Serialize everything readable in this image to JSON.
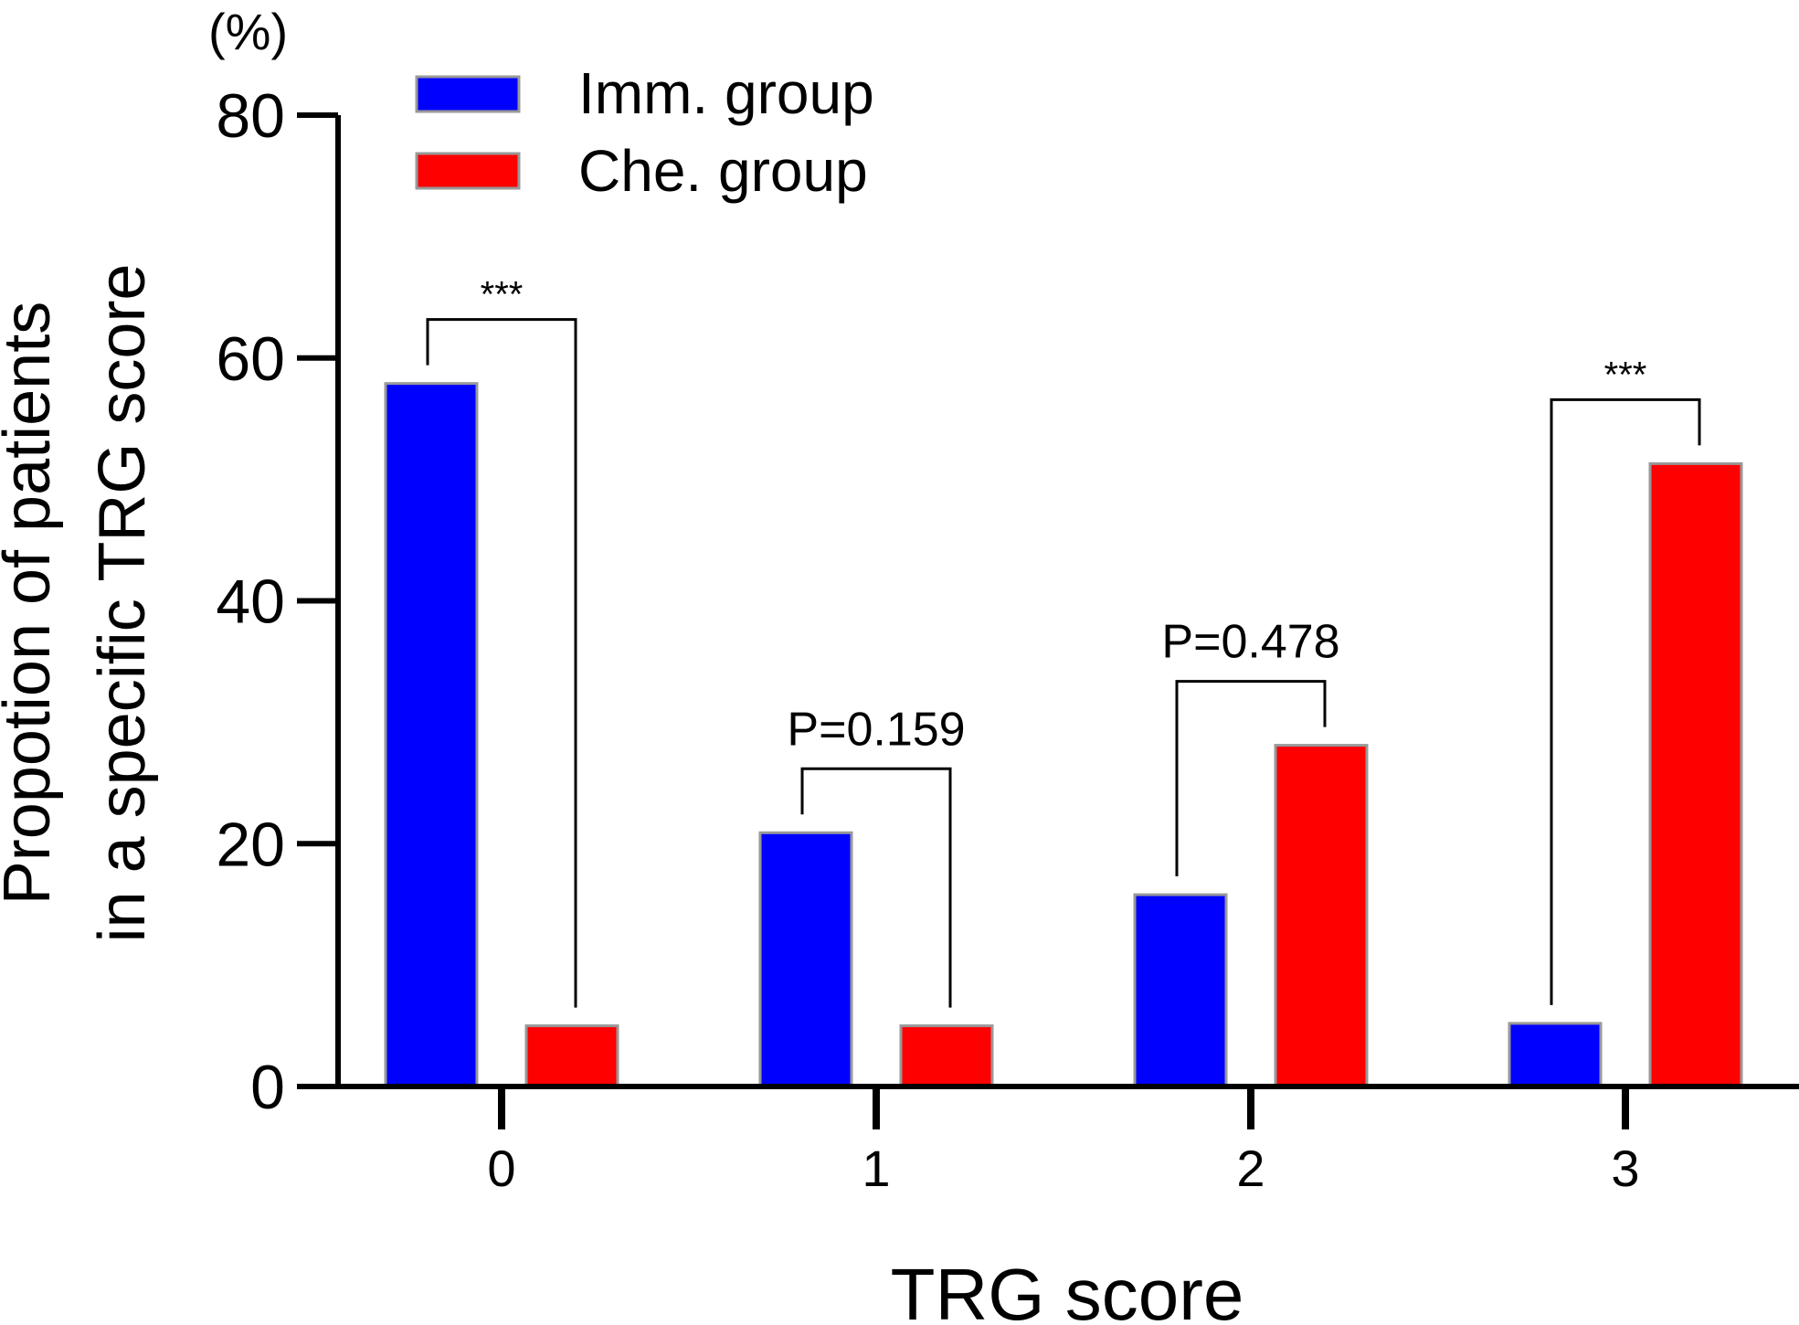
{
  "chart_data": {
    "type": "bar",
    "title": "",
    "xlabel": "TRG score",
    "ylabel_lines": [
      "Propotion of patients",
      "in a specific TRG score"
    ],
    "y_unit": "(%)",
    "categories": [
      "0",
      "1",
      "2",
      "3"
    ],
    "ylim": [
      0,
      80
    ],
    "y_ticks": [
      "0",
      "20",
      "40",
      "60",
      "80"
    ],
    "grid": false,
    "legend_position": "top-left",
    "series": [
      {
        "name": "Imm. group",
        "color": "#0000ff",
        "values": [
          57.9,
          20.9,
          15.8,
          5.2
        ]
      },
      {
        "name": "Che. group",
        "color": "#ff0000",
        "values": [
          5.0,
          5.0,
          28.1,
          51.3
        ]
      }
    ],
    "annotations": [
      {
        "category": "0",
        "label": "***"
      },
      {
        "category": "1",
        "label": "P=0.159"
      },
      {
        "category": "2",
        "label": "P=0.478"
      },
      {
        "category": "3",
        "label": "***"
      }
    ]
  }
}
